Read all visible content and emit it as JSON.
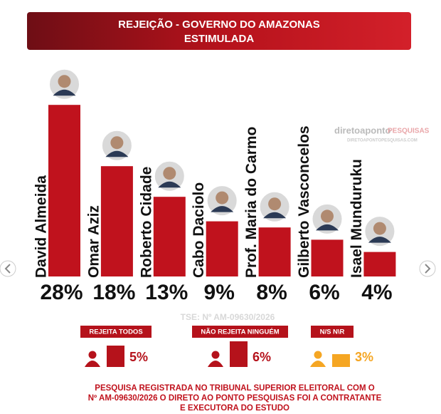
{
  "chart_data": [
    {
      "type": "bar",
      "title": "REJEIÇÃO - GOVERNO DO AMAZONAS",
      "subtitle": "ESTIMULADA",
      "categories": [
        "David Almeida",
        "Omar Aziz",
        "Roberto Cidade",
        "Cabo Daciolo",
        "Prof. Maria do Carmo",
        "Gilberto Vasconcelos",
        "Isael Munduruku"
      ],
      "values": [
        28,
        18,
        13,
        9,
        8,
        6,
        4
      ],
      "value_labels": [
        "28%",
        "18%",
        "13%",
        "9%",
        "8%",
        "6%",
        "4%"
      ],
      "color": "#c0121d"
    },
    {
      "type": "bar",
      "categories": [
        "REJEITA TODOS",
        "NÃO REJEITA NINGUÉM",
        "N/S N\\R"
      ],
      "values": [
        5,
        6,
        3
      ],
      "value_labels": [
        "5%",
        "6%",
        "3%"
      ],
      "colors": [
        "#b5121b",
        "#b5121b",
        "#f5a623"
      ]
    }
  ],
  "watermark": {
    "brand": "diretoaponto",
    "brand2": "PESQUISAS",
    "url": "DIRETOAPONTOPESQUISAS.COM"
  },
  "registration": "TSE: Nº AM-09630/2026",
  "footer": [
    "PESQUISA REGISTRADA NO TRIBUNAL SUPERIOR ELEITORAL COM O",
    "Nº AM-09630/2026 O DIRETO AO PONTO PESQUISAS FOI A CONTRATANTE",
    "E EXECUTORA DO ESTUDO"
  ]
}
